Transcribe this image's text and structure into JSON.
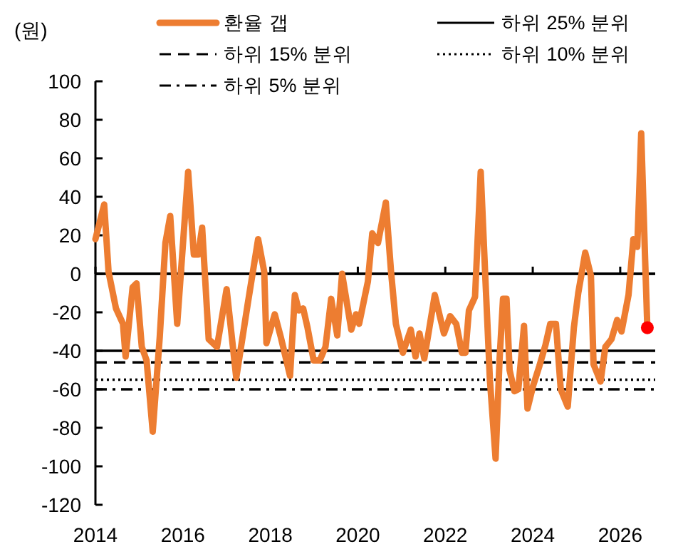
{
  "chart_data": {
    "type": "line",
    "ylabel": "(원)",
    "xlim": [
      2014,
      2026.8
    ],
    "xticks": [
      2014,
      2016,
      2018,
      2020,
      2022,
      2024,
      2026
    ],
    "ylim": [
      -120,
      100
    ],
    "yticks": [
      -120,
      -100,
      -80,
      -60,
      -40,
      -20,
      0,
      20,
      40,
      60,
      80,
      100
    ],
    "legend": "top",
    "marker": "none",
    "line_style": "solid",
    "series": [
      {
        "name": "환율 갭",
        "color": "#ed7d31",
        "x": [
          2014.0,
          2014.2,
          2014.3,
          2014.47,
          2014.63,
          2014.69,
          2014.85,
          2014.94,
          2015.06,
          2015.17,
          2015.31,
          2015.47,
          2015.6,
          2015.71,
          2015.87,
          2016.12,
          2016.25,
          2016.35,
          2016.44,
          2016.59,
          2016.78,
          2017.0,
          2017.22,
          2017.48,
          2017.72,
          2017.86,
          2017.91,
          2018.1,
          2018.24,
          2018.45,
          2018.56,
          2018.65,
          2018.75,
          2018.85,
          2018.99,
          2019.13,
          2019.26,
          2019.39,
          2019.53,
          2019.64,
          2019.85,
          2019.96,
          2020.03,
          2020.23,
          2020.33,
          2020.46,
          2020.64,
          2020.76,
          2020.87,
          2021.03,
          2021.21,
          2021.32,
          2021.41,
          2021.52,
          2021.76,
          2021.97,
          2022.11,
          2022.25,
          2022.38,
          2022.46,
          2022.54,
          2022.68,
          2022.81,
          2022.91,
          2023.02,
          2023.15,
          2023.24,
          2023.32,
          2023.4,
          2023.47,
          2023.58,
          2023.67,
          2023.8,
          2023.88,
          2024.01,
          2024.15,
          2024.29,
          2024.4,
          2024.53,
          2024.64,
          2024.8,
          2024.94,
          2025.04,
          2025.2,
          2025.33,
          2025.39,
          2025.55,
          2025.66,
          2025.8,
          2025.93,
          2026.03,
          2026.19,
          2026.3,
          2026.39,
          2026.48,
          2026.57,
          2026.62
        ],
        "values": [
          18,
          36,
          1,
          -18,
          -26,
          -43,
          -7,
          -5,
          -38,
          -45,
          -82,
          -33,
          16,
          30,
          -26,
          53,
          10,
          10,
          24,
          -34,
          -38,
          -8,
          -54,
          -16,
          18,
          1,
          -36,
          -21,
          -33,
          -53,
          -11,
          -19,
          -18,
          -28,
          -45,
          -45,
          -38,
          -13,
          -32,
          0,
          -29,
          -21,
          -26,
          -4,
          21,
          16,
          37,
          1,
          -26,
          -41,
          -29,
          -43,
          -31,
          -44,
          -11,
          -31,
          -22,
          -26,
          -41,
          -41,
          -19,
          -12,
          53,
          1,
          -55,
          -96,
          -45,
          -13,
          -13,
          -50,
          -61,
          -60,
          -27,
          -70,
          -58,
          -48,
          -37,
          -26,
          -26,
          -60,
          -69,
          -28,
          -10,
          11,
          -1,
          -47,
          -56,
          -38,
          -34,
          -24,
          -30,
          -11,
          18,
          14,
          73,
          7,
          -28
        ]
      },
      {
        "type": "scatter",
        "marker": "circle",
        "color": "#ff0000",
        "x": [
          2026.62
        ],
        "values": [
          -28
        ]
      }
    ],
    "ref_lines": [
      {
        "axis": "y",
        "value": 0,
        "color": "#000000",
        "line_style": "solid"
      },
      {
        "axis": "y",
        "value": -40,
        "label": "하위 25% 분위",
        "color": "#000000",
        "line_style": "solid"
      },
      {
        "axis": "y",
        "value": -46,
        "label": "하위 15% 분위",
        "color": "#000000",
        "line_style": "dashed"
      },
      {
        "axis": "y",
        "value": -55,
        "label": "하위 10% 분위",
        "color": "#000000",
        "line_style": "dotted"
      },
      {
        "axis": "y",
        "value": -60,
        "label": "하위 5% 분위",
        "color": "#000000",
        "line_style": "dashdot"
      }
    ]
  }
}
